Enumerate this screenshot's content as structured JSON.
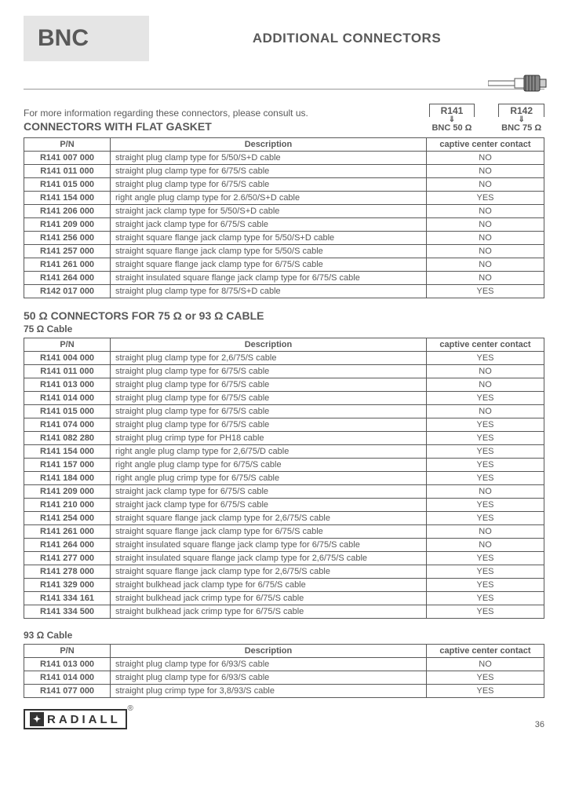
{
  "header": {
    "bnc_label": "BNC",
    "main_title": "ADDITIONAL CONNECTORS"
  },
  "intro": {
    "text": "For more information regarding these connectors, please consult us.",
    "section_title": "CONNECTORS WITH FLAT GASKET"
  },
  "families": [
    {
      "code": "R141",
      "label": "BNC 50 Ω"
    },
    {
      "code": "R142",
      "label": "BNC 75 Ω"
    }
  ],
  "table_headers": {
    "pn": "P/N",
    "desc": "Description",
    "ccc": "captive center contact"
  },
  "table1_rows": [
    [
      "R141 007 000",
      "straight plug clamp type for 5/50/S+D cable",
      "NO"
    ],
    [
      "R141 011 000",
      "straight plug clamp type for 6/75/S cable",
      "NO"
    ],
    [
      "R141 015 000",
      "straight plug clamp type for 6/75/S cable",
      "NO"
    ],
    [
      "R141 154 000",
      "right angle plug clamp type for 2.6/50/S+D cable",
      "YES"
    ],
    [
      "R141 206 000",
      "straight jack clamp type for 5/50/S+D cable",
      "NO"
    ],
    [
      "R141 209 000",
      "straight jack clamp type for 6/75/S cable",
      "NO"
    ],
    [
      "R141 256 000",
      "straight square flange jack clamp type for 5/50/S+D cable",
      "NO"
    ],
    [
      "R141 257 000",
      "straight square flange jack clamp type for 5/50/S cable",
      "NO"
    ],
    [
      "R141 261 000",
      "straight square flange jack clamp type for 6/75/S cable",
      "NO"
    ],
    [
      "R141 264 000",
      "straight insulated square flange jack clamp type for 6/75/S cable",
      "NO"
    ],
    [
      "R142 017 000",
      "straight plug clamp type for 8/75/S+D cable",
      "YES"
    ]
  ],
  "section2": {
    "title": "50 Ω CONNECTORS FOR 75 Ω or 93 Ω CABLE",
    "sub75": "75 Ω Cable",
    "sub93": "93 Ω Cable"
  },
  "table2_rows": [
    [
      "R141 004 000",
      "straight plug clamp type for 2,6/75/S cable",
      "YES"
    ],
    [
      "R141 011 000",
      "straight plug clamp type for 6/75/S cable",
      "NO"
    ],
    [
      "R141 013 000",
      "straight plug clamp type for 6/75/S cable",
      "NO"
    ],
    [
      "R141 014 000",
      "straight plug clamp type for 6/75/S cable",
      "YES"
    ],
    [
      "R141 015 000",
      "straight plug clamp type for 6/75/S cable",
      "NO"
    ],
    [
      "R141 074 000",
      "straight plug clamp type for 6/75/S cable",
      "YES"
    ],
    [
      "R141 082 280",
      "straight plug crimp type for PH18 cable",
      "YES"
    ],
    [
      "R141 154 000",
      "right angle plug clamp type for 2,6/75/D cable",
      "YES"
    ],
    [
      "R141 157 000",
      "right angle plug clamp type for 6/75/S cable",
      "YES"
    ],
    [
      "R141 184 000",
      "right angle plug crimp type for 6/75/S cable",
      "YES"
    ],
    [
      "R141 209 000",
      "straight jack clamp type for 6/75/S cable",
      "NO"
    ],
    [
      "R141 210 000",
      "straight jack clamp type for 6/75/S cable",
      "YES"
    ],
    [
      "R141 254 000",
      "straight square flange jack clamp type for 2,6/75/S cable",
      "YES"
    ],
    [
      "R141 261 000",
      "straight square flange jack clamp type for 6/75/S cable",
      "NO"
    ],
    [
      "R141 264 000",
      "straight insulated square flange jack clamp type for 6/75/S cable",
      "NO"
    ],
    [
      "R141 277 000",
      "straight insulated square flange jack clamp type for 2,6/75/S cable",
      "YES"
    ],
    [
      "R141 278 000",
      "straight square flange jack clamp type for 2,6/75/S cable",
      "YES"
    ],
    [
      "R141 329 000",
      "straight bulkhead jack clamp type for 6/75/S cable",
      "YES"
    ],
    [
      "R141 334 161",
      "straight bulkhead jack crimp type for 6/75/S cable",
      "YES"
    ],
    [
      "R141 334 500",
      "straight bulkhead jack crimp type for 6/75/S cable",
      "YES"
    ]
  ],
  "table3_rows": [
    [
      "R141 013 000",
      "straight plug clamp type for 6/93/S cable",
      "NO"
    ],
    [
      "R141 014 000",
      "straight plug clamp type for 6/93/S cable",
      "YES"
    ],
    [
      "R141 077 000",
      "straight plug crimp type for 3,8/93/S cable",
      "YES"
    ]
  ],
  "footer": {
    "brand": "RADIALL",
    "page": "36"
  },
  "styling": {
    "text_color": "#595959",
    "bnc_bg": "#e5e5e5",
    "border_color": "#595959",
    "font_family": "Arial",
    "title_fontsize": 17,
    "section_fontsize": 14,
    "body_fontsize": 11,
    "col_widths": {
      "pn": 110,
      "ccc": 150
    }
  }
}
